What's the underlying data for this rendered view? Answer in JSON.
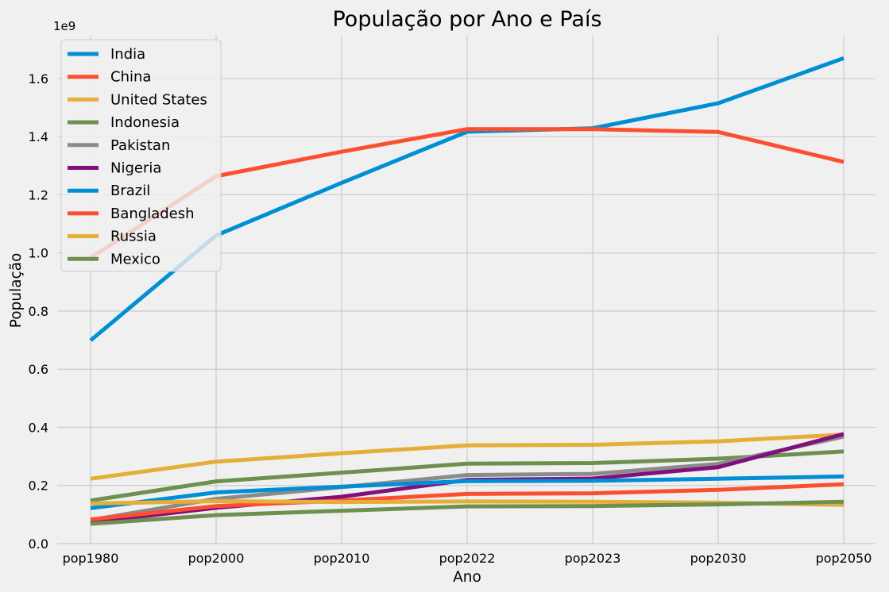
{
  "chart_data": {
    "type": "line",
    "title": "População por Ano e País",
    "xlabel": "Ano",
    "ylabel": "População",
    "y_offset_text": "1e9",
    "categories": [
      "pop1980",
      "pop2000",
      "pop2010",
      "pop2022",
      "pop2023",
      "pop2030",
      "pop2050"
    ],
    "ylim": [
      0,
      1.75
    ],
    "yticks": [
      0.0,
      0.2,
      0.4,
      0.6,
      0.8,
      1.0,
      1.2,
      1.4,
      1.6
    ],
    "ytick_labels": [
      "0.0",
      "0.2",
      "0.4",
      "0.6",
      "0.8",
      "1.0",
      "1.2",
      "1.4",
      "1.6"
    ],
    "y_unit_multiplier": 1000000000,
    "grid": true,
    "legend_position": "top-left",
    "series": [
      {
        "name": "India",
        "color": "#008fd5",
        "values": [
          0.699,
          1.06,
          1.241,
          1.417,
          1.429,
          1.515,
          1.67
        ]
      },
      {
        "name": "China",
        "color": "#fc4f30",
        "values": [
          0.983,
          1.264,
          1.348,
          1.426,
          1.426,
          1.416,
          1.313
        ]
      },
      {
        "name": "United States",
        "color": "#e5ae38",
        "values": [
          0.223,
          0.282,
          0.311,
          0.338,
          0.34,
          0.352,
          0.375
        ]
      },
      {
        "name": "Indonesia",
        "color": "#6d904f",
        "values": [
          0.148,
          0.214,
          0.244,
          0.275,
          0.277,
          0.292,
          0.317
        ]
      },
      {
        "name": "Pakistan",
        "color": "#8b8b8b",
        "values": [
          0.081,
          0.154,
          0.194,
          0.236,
          0.24,
          0.274,
          0.368
        ]
      },
      {
        "name": "Nigeria",
        "color": "#810f7c",
        "values": [
          0.073,
          0.123,
          0.161,
          0.219,
          0.224,
          0.263,
          0.377
        ]
      },
      {
        "name": "Brazil",
        "color": "#008fd5",
        "values": [
          0.122,
          0.176,
          0.196,
          0.215,
          0.216,
          0.223,
          0.231
        ]
      },
      {
        "name": "Bangladesh",
        "color": "#fc4f30",
        "values": [
          0.083,
          0.129,
          0.148,
          0.171,
          0.173,
          0.185,
          0.204
        ]
      },
      {
        "name": "Russia",
        "color": "#e5ae38",
        "values": [
          0.138,
          0.146,
          0.143,
          0.145,
          0.144,
          0.141,
          0.133
        ]
      },
      {
        "name": "Mexico",
        "color": "#6d904f",
        "values": [
          0.068,
          0.098,
          0.113,
          0.128,
          0.129,
          0.135,
          0.144
        ]
      }
    ]
  },
  "colors": {
    "background": "#f0f0f0",
    "grid": "#cbcbcb"
  }
}
